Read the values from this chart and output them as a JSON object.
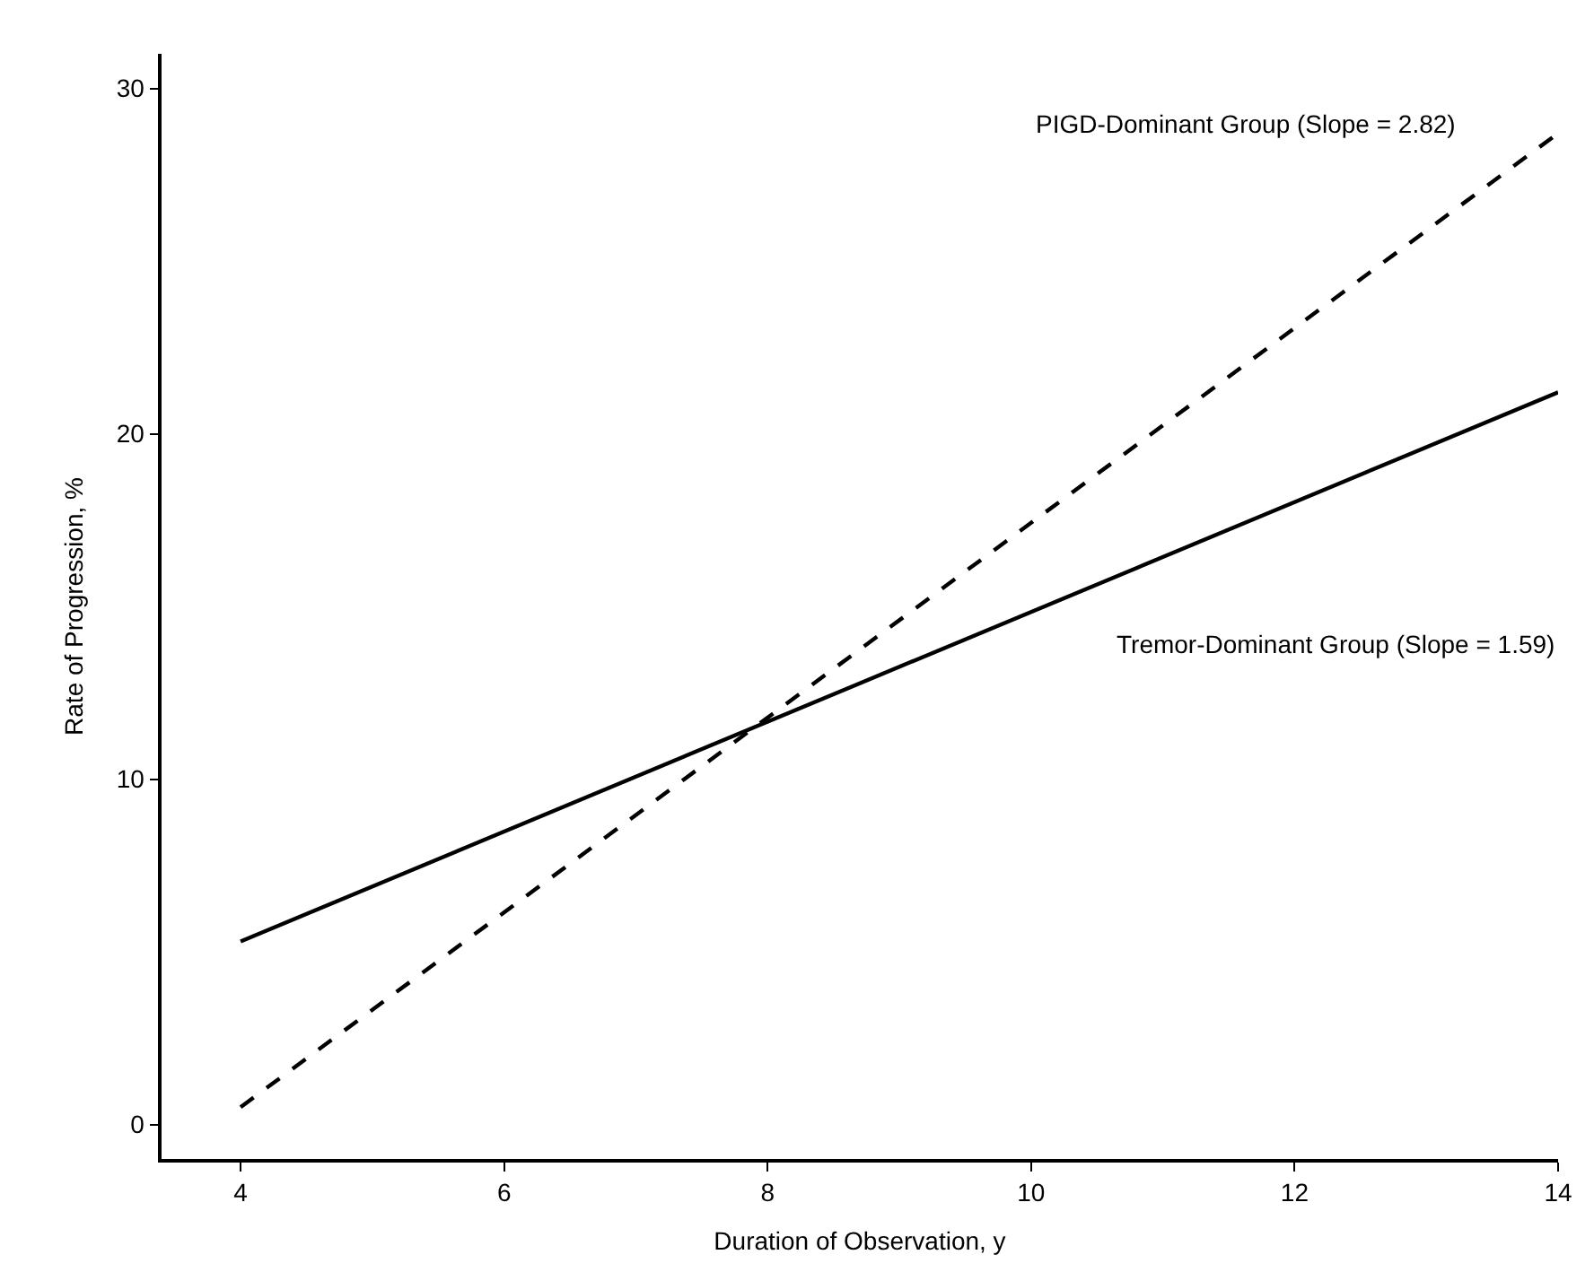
{
  "chart_data": {
    "type": "line",
    "xlabel": "Duration of Observation, y",
    "ylabel": "Rate of Progression, %",
    "x": [
      4,
      14
    ],
    "series": [
      {
        "name": "Tremor-Dominant Group (Slope = 1.59)",
        "color": "#000000",
        "values": [
          5.3,
          21.2
        ],
        "line_style": "solid"
      },
      {
        "name": "PIGD-Dominant Group (Slope = 2.82)",
        "color": "#000000",
        "values": [
          0.5,
          28.7
        ],
        "line_style": "dashed"
      }
    ],
    "xlim": [
      3.4,
      14
    ],
    "ylim": [
      -1,
      31
    ],
    "xticks": [
      4,
      6,
      8,
      10,
      12,
      14
    ],
    "yticks": [
      0,
      10,
      20,
      30
    ],
    "legend": false,
    "marker": "none"
  }
}
